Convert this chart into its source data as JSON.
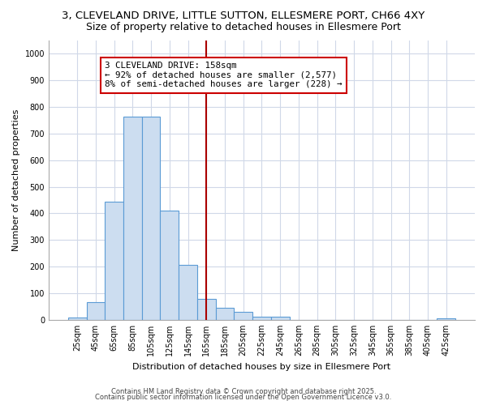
{
  "title_line1": "3, CLEVELAND DRIVE, LITTLE SUTTON, ELLESMERE PORT, CH66 4XY",
  "title_line2": "Size of property relative to detached houses in Ellesmere Port",
  "xlabel": "Distribution of detached houses by size in Ellesmere Port",
  "ylabel": "Number of detached properties",
  "categories": [
    "25sqm",
    "45sqm",
    "65sqm",
    "85sqm",
    "105sqm",
    "125sqm",
    "145sqm",
    "165sqm",
    "185sqm",
    "205sqm",
    "225sqm",
    "245sqm",
    "265sqm",
    "285sqm",
    "305sqm",
    "325sqm",
    "345sqm",
    "365sqm",
    "385sqm",
    "405sqm",
    "425sqm"
  ],
  "values": [
    10,
    65,
    445,
    765,
    765,
    410,
    205,
    80,
    45,
    30,
    12,
    12,
    0,
    0,
    0,
    0,
    0,
    0,
    0,
    0,
    5
  ],
  "bar_color": "#ccddf0",
  "bar_edge_color": "#5b9bd5",
  "vline_x": 7.0,
  "vline_color": "#aa0000",
  "annotation_text": "3 CLEVELAND DRIVE: 158sqm\n← 92% of detached houses are smaller (2,577)\n8% of semi-detached houses are larger (228) →",
  "annotation_box_color": "#ffffff",
  "annotation_box_edge_color": "#cc0000",
  "ylim": [
    0,
    1050
  ],
  "yticks": [
    0,
    100,
    200,
    300,
    400,
    500,
    600,
    700,
    800,
    900,
    1000
  ],
  "background_color": "#ffffff",
  "plot_bg_color": "#ffffff",
  "grid_color": "#d0d8e8",
  "footer_line1": "Contains HM Land Registry data © Crown copyright and database right 2025.",
  "footer_line2": "Contains public sector information licensed under the Open Government Licence v3.0.",
  "title_fontsize": 9.5,
  "subtitle_fontsize": 9,
  "axis_label_fontsize": 8,
  "tick_fontsize": 7,
  "annotation_fontsize": 7.8,
  "footer_fontsize": 6
}
